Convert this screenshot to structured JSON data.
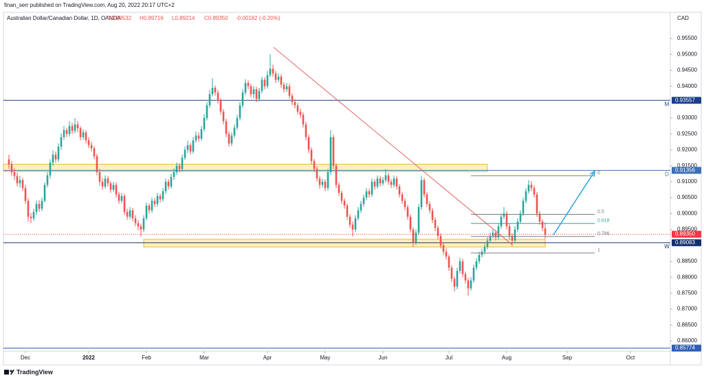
{
  "chart_data": {
    "type": "candlestick",
    "publisher": "finan_serr published on TradingView.com, Aug 20, 2022 20:17 UTC+2",
    "title": "Australian Dollar/Canadian Dollar, 1D, OANDA",
    "legend_values": [
      "O0.89532",
      "H0.89716",
      "L0.89214",
      "C0.89350",
      "-0.00182 (-0.20%)"
    ],
    "currency": "CAD",
    "footer": "TradingView",
    "up_color": "#26a69a",
    "down_color": "#ef5350",
    "xlim": [
      -2,
      240.5
    ],
    "ylim": [
      0.85677,
      0.96319
    ],
    "xticks": [
      {
        "value": 6,
        "label": "Dec"
      },
      {
        "value": 29,
        "label": "2022"
      },
      {
        "value": 50,
        "label": "Feb"
      },
      {
        "value": 71,
        "label": "Mar"
      },
      {
        "value": 94,
        "label": "Apr"
      },
      {
        "value": 115,
        "label": "May"
      },
      {
        "value": 136,
        "label": "Jun"
      },
      {
        "value": 160,
        "label": "Jul"
      },
      {
        "value": 181,
        "label": "Aug"
      },
      {
        "value": 203,
        "label": "Sep"
      },
      {
        "value": 226,
        "label": "Oct"
      }
    ],
    "yticks": [
      {
        "value": 0.955,
        "label": "0.95500"
      },
      {
        "value": 0.95,
        "label": "0.95000"
      },
      {
        "value": 0.945,
        "label": "0.94500"
      },
      {
        "value": 0.94,
        "label": "0.94000"
      },
      {
        "value": 0.93,
        "label": "0.93000"
      },
      {
        "value": 0.925,
        "label": "0.92500"
      },
      {
        "value": 0.92,
        "label": "0.92000"
      },
      {
        "value": 0.915,
        "label": "0.91500"
      },
      {
        "value": 0.91,
        "label": "0.91000"
      },
      {
        "value": 0.905,
        "label": "0.90500"
      },
      {
        "value": 0.9,
        "label": "0.90000"
      },
      {
        "value": 0.895,
        "label": "0.89500"
      },
      {
        "value": 0.885,
        "label": "0.88500"
      },
      {
        "value": 0.88,
        "label": "0.88000"
      },
      {
        "value": 0.875,
        "label": "0.87500"
      },
      {
        "value": 0.87,
        "label": "0.87000"
      },
      {
        "value": 0.865,
        "label": "0.86500"
      },
      {
        "value": 0.86,
        "label": "0.86000"
      }
    ],
    "open": [
      0.917,
      0.9154,
      0.913,
      0.9118,
      0.9095,
      0.9105,
      0.908,
      0.904,
      0.899,
      0.8985,
      0.9005,
      0.903,
      0.9015,
      0.904,
      0.909,
      0.912,
      0.916,
      0.9185,
      0.917,
      0.921,
      0.924,
      0.9262,
      0.925,
      0.9275,
      0.926,
      0.928,
      0.9268,
      0.924,
      0.9255,
      0.923,
      0.9215,
      0.9205,
      0.918,
      0.913,
      0.91,
      0.9085,
      0.911,
      0.9095,
      0.9075,
      0.909,
      0.906,
      0.904,
      0.9055,
      0.9005,
      0.899,
      0.901,
      0.8985,
      0.897,
      0.896,
      0.895,
      0.8985,
      0.9025,
      0.901,
      0.904,
      0.903,
      0.9055,
      0.9045,
      0.907,
      0.91,
      0.9085,
      0.9115,
      0.913,
      0.915,
      0.914,
      0.9175,
      0.92,
      0.9215,
      0.9195,
      0.923,
      0.9245,
      0.9235,
      0.9265,
      0.93,
      0.934,
      0.9375,
      0.9395,
      0.938,
      0.9355,
      0.932,
      0.929,
      0.925,
      0.922,
      0.9245,
      0.927,
      0.93,
      0.934,
      0.938,
      0.941,
      0.94,
      0.9375,
      0.939,
      0.936,
      0.9385,
      0.942,
      0.94,
      0.9435,
      0.9455,
      0.944,
      0.942,
      0.943,
      0.9405,
      0.939,
      0.94,
      0.937,
      0.935,
      0.934,
      0.932,
      0.931,
      0.928,
      0.924,
      0.92,
      0.9165,
      0.914,
      0.911,
      0.909,
      0.91,
      0.908,
      0.913,
      0.924,
      0.915,
      0.909,
      0.9065,
      0.904,
      0.9025,
      0.899,
      0.8965,
      0.895,
      0.8985,
      0.901,
      0.903,
      0.905,
      0.907,
      0.906,
      0.91,
      0.9085,
      0.911,
      0.9095,
      0.9105,
      0.912,
      0.91,
      0.909,
      0.911,
      0.9085,
      0.906,
      0.904,
      0.902,
      0.899,
      0.895,
      0.891,
      0.894,
      0.902,
      0.9105,
      0.906,
      0.903,
      0.901,
      0.898,
      0.8955,
      0.893,
      0.89,
      0.888,
      0.8865,
      0.883,
      0.8795,
      0.877,
      0.882,
      0.885,
      0.881,
      0.879,
      0.8765,
      0.879,
      0.883,
      0.885,
      0.887,
      0.888,
      0.8895,
      0.8915,
      0.893,
      0.894,
      0.8925,
      0.896,
      0.899,
      0.9,
      0.896,
      0.893,
      0.8915,
      0.895,
      0.8975,
      0.9,
      0.904,
      0.907,
      0.909,
      0.908,
      0.906,
      0.9,
      0.8975,
      0.89532
    ],
    "high": [
      0.9185,
      0.9165,
      0.9142,
      0.9128,
      0.9118,
      0.9112,
      0.909,
      0.9048,
      0.9002,
      0.9015,
      0.904,
      0.9042,
      0.905,
      0.9098,
      0.913,
      0.917,
      0.9198,
      0.9195,
      0.922,
      0.9252,
      0.9275,
      0.927,
      0.929,
      0.9285,
      0.93,
      0.929,
      0.9275,
      0.9265,
      0.9262,
      0.924,
      0.9225,
      0.9212,
      0.9188,
      0.914,
      0.9112,
      0.912,
      0.9118,
      0.9102,
      0.91,
      0.9098,
      0.9068,
      0.9065,
      0.9062,
      0.9015,
      0.902,
      0.9018,
      0.8995,
      0.898,
      0.8968,
      0.8995,
      0.9035,
      0.9032,
      0.905,
      0.9048,
      0.9065,
      0.9062,
      0.908,
      0.911,
      0.9108,
      0.9125,
      0.9142,
      0.916,
      0.9158,
      0.9185,
      0.921,
      0.9228,
      0.9222,
      0.924,
      0.9258,
      0.9255,
      0.9275,
      0.9312,
      0.935,
      0.9388,
      0.9425,
      0.9402,
      0.9388,
      0.9362,
      0.9328,
      0.9298,
      0.9258,
      0.9255,
      0.928,
      0.931,
      0.935,
      0.939,
      0.9422,
      0.9418,
      0.9408,
      0.94,
      0.9398,
      0.9395,
      0.943,
      0.9428,
      0.9448,
      0.95,
      0.9468,
      0.9448,
      0.944,
      0.9438,
      0.9412,
      0.941,
      0.9408,
      0.9378,
      0.936,
      0.9348,
      0.933,
      0.9318,
      0.9288,
      0.9248,
      0.9208,
      0.9172,
      0.9148,
      0.9118,
      0.911,
      0.9108,
      0.914,
      0.9262,
      0.9248,
      0.9158,
      0.9098,
      0.9072,
      0.9048,
      0.9032,
      0.8998,
      0.8975,
      0.8995,
      0.902,
      0.904,
      0.906,
      0.908,
      0.9078,
      0.911,
      0.9108,
      0.912,
      0.9118,
      0.9115,
      0.914,
      0.9128,
      0.9108,
      0.912,
      0.9118,
      0.9092,
      0.9068,
      0.9048,
      0.9028,
      0.8998,
      0.8958,
      0.895,
      0.903,
      0.9118,
      0.9112,
      0.9068,
      0.9038,
      0.9018,
      0.8988,
      0.8962,
      0.8938,
      0.8908,
      0.889,
      0.8872,
      0.8838,
      0.8802,
      0.883,
      0.8862,
      0.8858,
      0.8818,
      0.8798,
      0.88,
      0.884,
      0.886,
      0.888,
      0.889,
      0.8905,
      0.8925,
      0.894,
      0.895,
      0.8948,
      0.897,
      0.9,
      0.902,
      0.9008,
      0.8968,
      0.8938,
      0.896,
      0.8985,
      0.901,
      0.905,
      0.908,
      0.9105,
      0.9102,
      0.9088,
      0.9068,
      0.9008,
      0.8982,
      0.89716
    ],
    "low": [
      0.914,
      0.9118,
      0.9105,
      0.9085,
      0.9082,
      0.907,
      0.903,
      0.8975,
      0.897,
      0.8978,
      0.8995,
      0.9005,
      0.9008,
      0.9035,
      0.9082,
      0.911,
      0.915,
      0.916,
      0.9162,
      0.92,
      0.9232,
      0.924,
      0.9242,
      0.925,
      0.9252,
      0.9255,
      0.923,
      0.9232,
      0.922,
      0.9205,
      0.9195,
      0.917,
      0.912,
      0.9088,
      0.9075,
      0.9078,
      0.9085,
      0.9065,
      0.9068,
      0.905,
      0.903,
      0.9032,
      0.8995,
      0.898,
      0.8982,
      0.8975,
      0.896,
      0.8948,
      0.8928,
      0.8942,
      0.8978,
      0.9,
      0.9002,
      0.902,
      0.9022,
      0.9035,
      0.9038,
      0.9062,
      0.9075,
      0.9078,
      0.9105,
      0.9122,
      0.913,
      0.9132,
      0.9168,
      0.919,
      0.9185,
      0.9188,
      0.9222,
      0.9225,
      0.9228,
      0.9258,
      0.9292,
      0.9332,
      0.9368,
      0.937,
      0.9345,
      0.931,
      0.928,
      0.924,
      0.921,
      0.9212,
      0.9238,
      0.9262,
      0.9292,
      0.9332,
      0.9372,
      0.939,
      0.9365,
      0.9362,
      0.935,
      0.9352,
      0.9378,
      0.939,
      0.9392,
      0.9428,
      0.943,
      0.941,
      0.9412,
      0.9395,
      0.938,
      0.9382,
      0.936,
      0.934,
      0.933,
      0.931,
      0.93,
      0.927,
      0.923,
      0.919,
      0.9155,
      0.913,
      0.91,
      0.9078,
      0.9082,
      0.907,
      0.9072,
      0.9122,
      0.914,
      0.908,
      0.9055,
      0.903,
      0.9015,
      0.898,
      0.8955,
      0.8928,
      0.8942,
      0.8978,
      0.9002,
      0.9022,
      0.9042,
      0.905,
      0.9052,
      0.9075,
      0.9078,
      0.9085,
      0.9088,
      0.9098,
      0.909,
      0.908,
      0.9082,
      0.9075,
      0.905,
      0.903,
      0.901,
      0.898,
      0.894,
      0.8895,
      0.8902,
      0.8932,
      0.9012,
      0.905,
      0.902,
      0.9,
      0.897,
      0.8945,
      0.892,
      0.889,
      0.887,
      0.8855,
      0.882,
      0.8785,
      0.8755,
      0.8762,
      0.8812,
      0.88,
      0.878,
      0.8742,
      0.8758,
      0.8782,
      0.8822,
      0.8842,
      0.8862,
      0.8872,
      0.8888,
      0.8908,
      0.8922,
      0.8915,
      0.8918,
      0.8952,
      0.8982,
      0.895,
      0.892,
      0.8898,
      0.8908,
      0.8942,
      0.8968,
      0.8992,
      0.9032,
      0.9062,
      0.907,
      0.905,
      0.899,
      0.8965,
      0.8945,
      0.89214
    ],
    "close": [
      0.9154,
      0.913,
      0.9118,
      0.9095,
      0.9105,
      0.908,
      0.904,
      0.899,
      0.8985,
      0.9005,
      0.903,
      0.9015,
      0.904,
      0.909,
      0.912,
      0.916,
      0.9185,
      0.917,
      0.921,
      0.924,
      0.9262,
      0.925,
      0.9275,
      0.926,
      0.928,
      0.9268,
      0.924,
      0.9255,
      0.923,
      0.9215,
      0.9205,
      0.918,
      0.913,
      0.91,
      0.9085,
      0.911,
      0.9095,
      0.9075,
      0.909,
      0.906,
      0.904,
      0.9055,
      0.9005,
      0.899,
      0.901,
      0.8985,
      0.897,
      0.896,
      0.895,
      0.8985,
      0.9025,
      0.901,
      0.904,
      0.903,
      0.9055,
      0.9045,
      0.907,
      0.91,
      0.9085,
      0.9115,
      0.913,
      0.915,
      0.914,
      0.9175,
      0.92,
      0.9215,
      0.9195,
      0.923,
      0.9245,
      0.9235,
      0.9265,
      0.93,
      0.934,
      0.9375,
      0.9395,
      0.938,
      0.9355,
      0.932,
      0.929,
      0.925,
      0.922,
      0.9245,
      0.927,
      0.93,
      0.934,
      0.938,
      0.941,
      0.94,
      0.9375,
      0.939,
      0.936,
      0.9385,
      0.942,
      0.94,
      0.9435,
      0.9455,
      0.944,
      0.942,
      0.943,
      0.9405,
      0.939,
      0.94,
      0.937,
      0.935,
      0.934,
      0.932,
      0.931,
      0.928,
      0.924,
      0.92,
      0.9165,
      0.914,
      0.911,
      0.909,
      0.91,
      0.908,
      0.913,
      0.924,
      0.915,
      0.909,
      0.9065,
      0.904,
      0.9025,
      0.899,
      0.8965,
      0.895,
      0.8985,
      0.901,
      0.903,
      0.905,
      0.907,
      0.906,
      0.91,
      0.9085,
      0.911,
      0.9095,
      0.9105,
      0.912,
      0.91,
      0.909,
      0.911,
      0.9085,
      0.906,
      0.904,
      0.902,
      0.899,
      0.895,
      0.891,
      0.894,
      0.902,
      0.9105,
      0.906,
      0.903,
      0.901,
      0.898,
      0.8955,
      0.893,
      0.89,
      0.888,
      0.8865,
      0.883,
      0.8795,
      0.877,
      0.882,
      0.885,
      0.881,
      0.879,
      0.8765,
      0.879,
      0.883,
      0.885,
      0.887,
      0.888,
      0.8895,
      0.8915,
      0.893,
      0.894,
      0.8925,
      0.896,
      0.899,
      0.9,
      0.896,
      0.893,
      0.8915,
      0.895,
      0.8975,
      0.9,
      0.904,
      0.907,
      0.909,
      0.908,
      0.906,
      0.9,
      0.8975,
      0.8955,
      0.8935
    ],
    "last_price": {
      "value": 0.8935,
      "label": "0.89350",
      "color": "#f23645"
    },
    "levels": [
      {
        "value": 0.93557,
        "name": "M",
        "color": "#1c3f8a"
      },
      {
        "value": 0.91356,
        "name": "D",
        "color": "#3d6fb5"
      },
      {
        "value": 0.89083,
        "name": "W",
        "color": "#13306e"
      },
      {
        "value": 0.85774,
        "color": "#2f5fb3"
      }
    ],
    "zones": [
      {
        "x": [
          -2,
          174
        ],
        "y": [
          0.9155,
          0.9132
        ],
        "color": "#fff1bd"
      },
      {
        "x": [
          49,
          195
        ],
        "y": [
          0.8919,
          0.8895
        ],
        "color": "#fff1bd"
      }
    ],
    "trendline": {
      "x": [
        96.25,
        183
      ],
      "y": [
        0.9522,
        0.8902
      ],
      "color": "#e06666"
    },
    "arrow": {
      "x": [
        198,
        213
      ],
      "y": [
        0.8933,
        0.9133
      ],
      "color": "#2aa7de"
    },
    "fib": {
      "x": [
        168,
        213
      ],
      "start": 0.9119,
      "end": 0.8876,
      "levels": [
        0,
        0.5,
        0.618,
        0.786,
        1
      ],
      "colors": [
        "#787b86",
        "#787b86",
        "#26a69a",
        "#787b86",
        "#787b86"
      ]
    }
  }
}
